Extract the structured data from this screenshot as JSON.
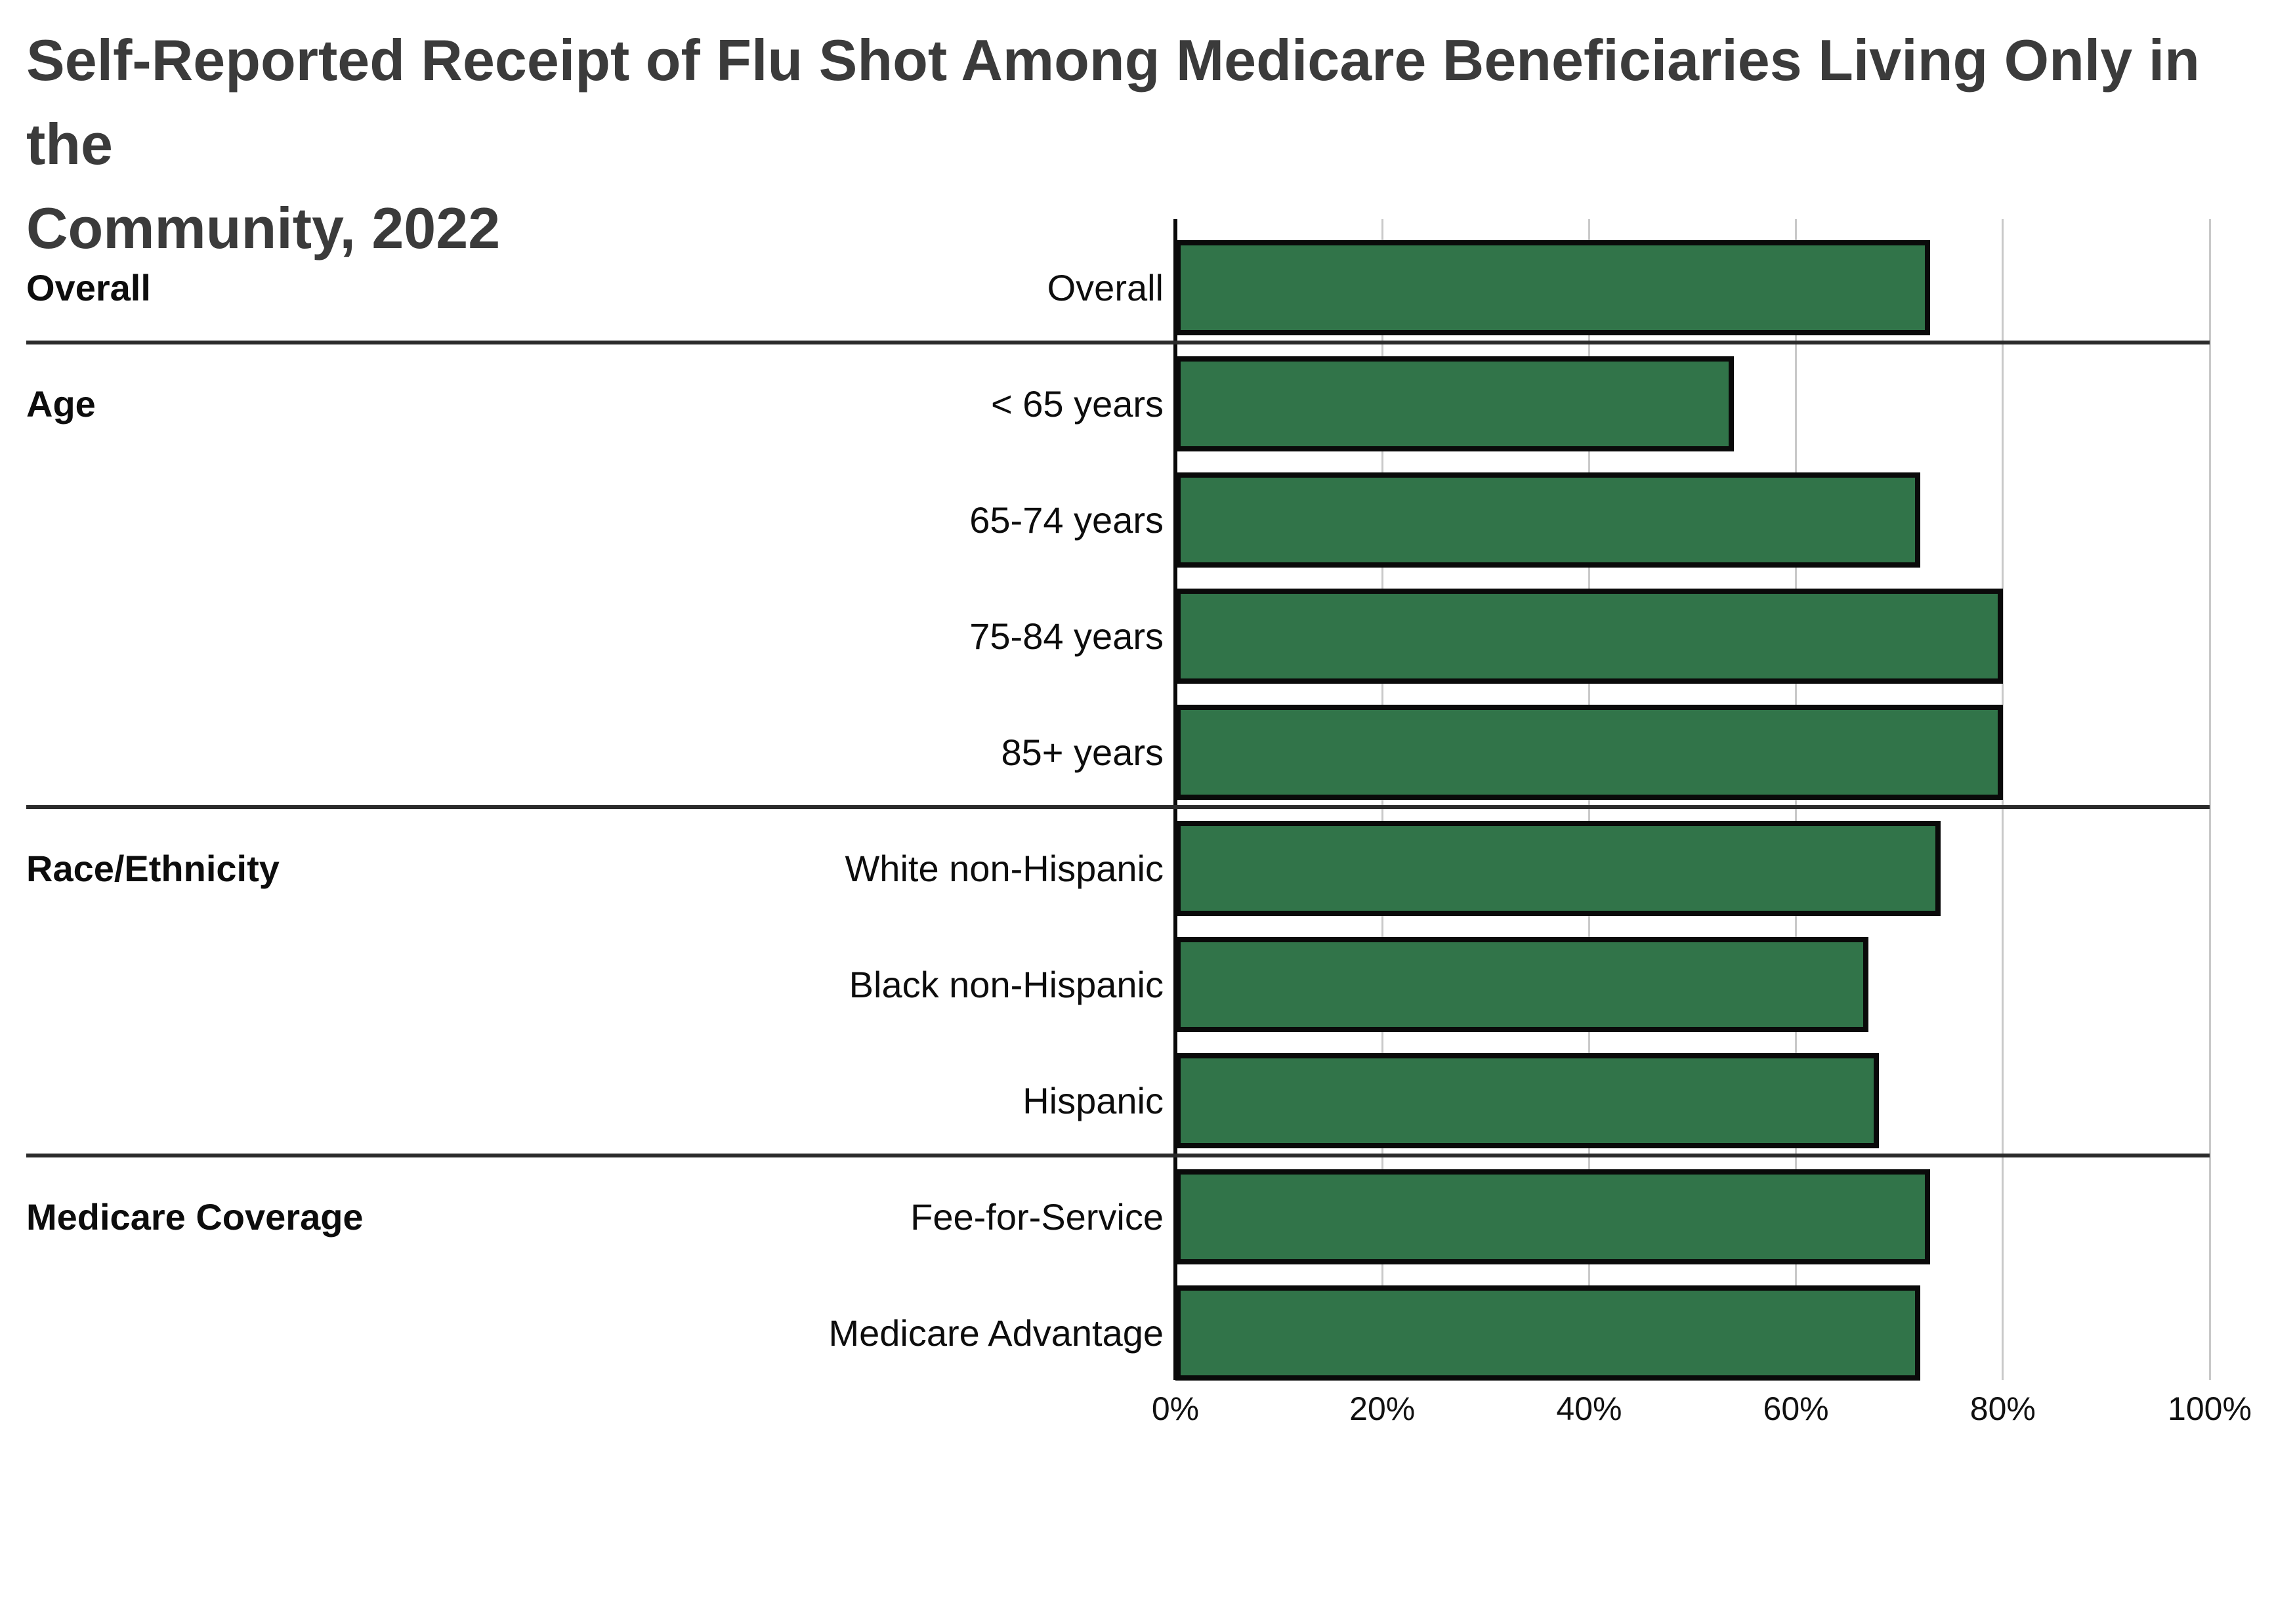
{
  "page": {
    "title": "Self-Reported Receipt of Flu Shot Among Medicare Beneficiaries Living Only in the Community, 2022"
  },
  "chart_data": {
    "type": "bar",
    "orientation": "horizontal",
    "title": "Self-Reported Receipt of Flu Shot Among Medicare Beneficiaries Living Only in the Community, 2022",
    "title_lines": [
      "Self-Reported Receipt of Flu Shot Among Medicare Beneficiaries Living Only in the",
      "Community, 2022"
    ],
    "unit": "%",
    "xlim": [
      0,
      100
    ],
    "x_ticks": [
      "0%",
      "20%",
      "40%",
      "60%",
      "80%",
      "100%"
    ],
    "grid": true,
    "legend": "none",
    "bar_fill_color": "#317449",
    "bar_border_color": "#0a0a0a",
    "gridline_color": "#c9c9c9",
    "axis_line_color": "#0a0a0a",
    "section_divider_color": "#2b2b2b",
    "title_color": "#3b3b3b",
    "groups": [
      {
        "label": "Overall",
        "items": [
          {
            "label": "Overall",
            "value": 73
          }
        ]
      },
      {
        "label": "Age",
        "items": [
          {
            "label": "< 65 years",
            "value": 54
          },
          {
            "label": "65-74 years",
            "value": 72
          },
          {
            "label": "75-84 years",
            "value": 80
          },
          {
            "label": "85+ years",
            "value": 80
          }
        ]
      },
      {
        "label": "Race/Ethnicity",
        "items": [
          {
            "label": "White non-Hispanic",
            "value": 74
          },
          {
            "label": "Black non-Hispanic",
            "value": 67
          },
          {
            "label": "Hispanic",
            "value": 68
          }
        ]
      },
      {
        "label": "Medicare Coverage",
        "items": [
          {
            "label": "Fee-for-Service",
            "value": 73
          },
          {
            "label": "Medicare Advantage",
            "value": 72
          }
        ]
      }
    ]
  }
}
